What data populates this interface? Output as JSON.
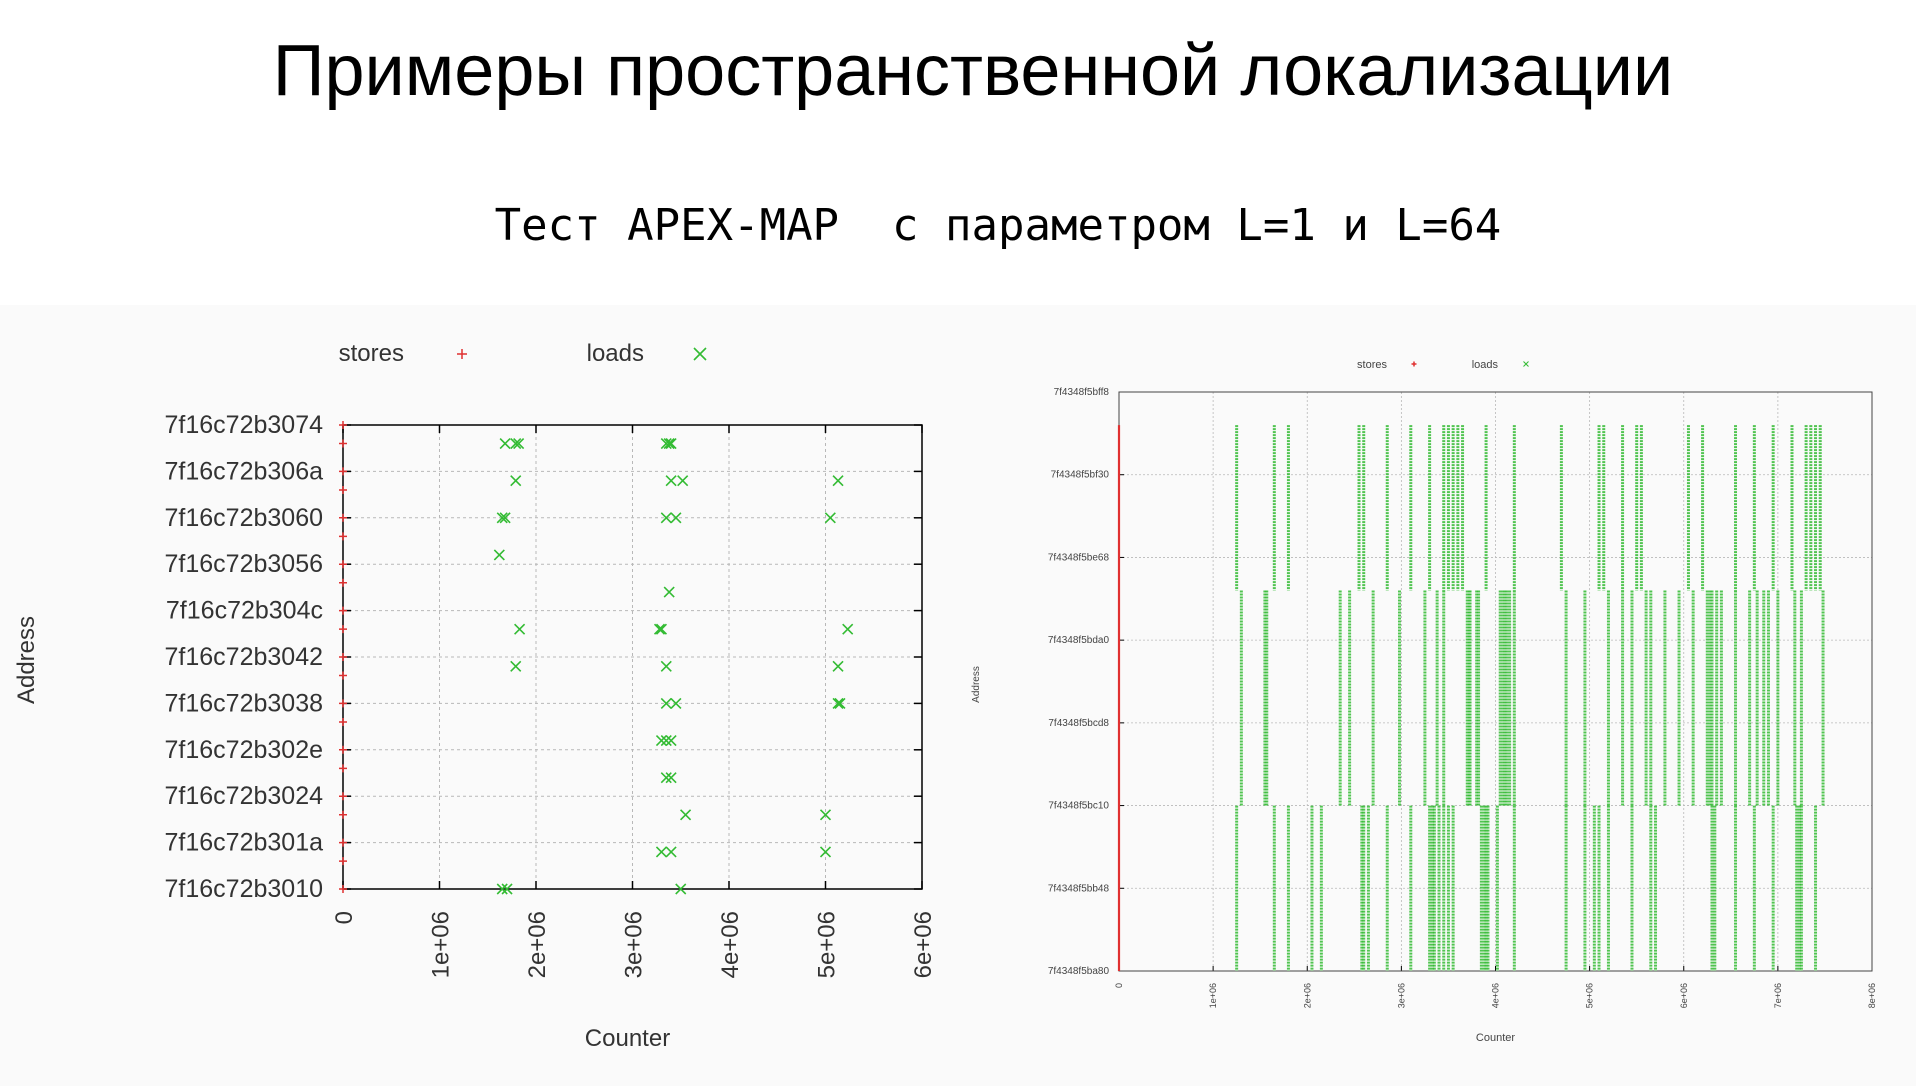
{
  "slide": {
    "title": "Примеры пространственной локализации",
    "subtitle": "Тест APEX-MAP  с параметром L=1 и L=64"
  },
  "colors": {
    "stores": "#e03030",
    "loads": "#33bb33",
    "grid": "#b8b8b8",
    "axis": "#000000"
  },
  "chart_data": [
    {
      "type": "scatter",
      "title": "",
      "xlabel": "Counter",
      "ylabel": "Address",
      "legend": [
        {
          "name": "stores",
          "marker": "+",
          "color": "#e03030"
        },
        {
          "name": "loads",
          "marker": "x",
          "color": "#33bb33"
        }
      ],
      "legend_position": "top",
      "grid": true,
      "xlim": [
        0,
        6000000
      ],
      "x_tick_labels": [
        "0",
        "1e+06",
        "2e+06",
        "3e+06",
        "4e+06",
        "5e+06",
        "6e+06"
      ],
      "y_tick_labels": [
        "7f16c72b3010",
        "7f16c72b301a",
        "7f16c72b3024",
        "7f16c72b302e",
        "7f16c72b3038",
        "7f16c72b3042",
        "7f16c72b304c",
        "7f16c72b3056",
        "7f16c72b3060",
        "7f16c72b306a",
        "7f16c72b3074"
      ],
      "series": [
        {
          "name": "stores",
          "points": [
            [
              0,
              0
            ],
            [
              0,
              1
            ],
            [
              0,
              2
            ],
            [
              0,
              3
            ],
            [
              0,
              4
            ],
            [
              0,
              5
            ],
            [
              0,
              6
            ],
            [
              0,
              7
            ],
            [
              0,
              8
            ],
            [
              0,
              9
            ],
            [
              0,
              10
            ],
            [
              0,
              0.6
            ],
            [
              0,
              1.6
            ],
            [
              0,
              2.6
            ],
            [
              0,
              3.6
            ],
            [
              0,
              4.6
            ],
            [
              0,
              5.6
            ],
            [
              0,
              6.6
            ],
            [
              0,
              7.6
            ],
            [
              0,
              8.6
            ],
            [
              0,
              9.6
            ]
          ]
        },
        {
          "name": "loads",
          "points": [
            [
              1700000,
              0
            ],
            [
              1650000,
              0
            ],
            [
              3500000,
              0
            ],
            [
              3300000,
              0.8
            ],
            [
              3400000,
              0.8
            ],
            [
              5000000,
              0.8
            ],
            [
              3550000,
              1.6
            ],
            [
              5000000,
              1.6
            ],
            [
              3400000,
              2.4
            ],
            [
              3350000,
              2.4
            ],
            [
              3300000,
              3.2
            ],
            [
              3400000,
              3.2
            ],
            [
              3350000,
              3.2
            ],
            [
              3350000,
              4.0
            ],
            [
              3450000,
              4.0
            ],
            [
              5150000,
              4.0
            ],
            [
              5130000,
              4.0
            ],
            [
              1790000,
              4.8
            ],
            [
              3350000,
              4.8
            ],
            [
              5130000,
              4.8
            ],
            [
              1830000,
              5.6
            ],
            [
              3300000,
              5.6
            ],
            [
              3280000,
              5.6
            ],
            [
              5230000,
              5.6
            ],
            [
              3380000,
              6.4
            ],
            [
              1620000,
              7.2
            ],
            [
              1680000,
              8.0
            ],
            [
              1650000,
              8.0
            ],
            [
              3350000,
              8.0
            ],
            [
              3450000,
              8.0
            ],
            [
              5050000,
              8.0
            ],
            [
              1790000,
              8.8
            ],
            [
              3400000,
              8.8
            ],
            [
              3520000,
              8.8
            ],
            [
              5130000,
              8.8
            ],
            [
              1680000,
              9.6
            ],
            [
              1790000,
              9.6
            ],
            [
              1820000,
              9.6
            ],
            [
              3350000,
              9.6
            ],
            [
              3400000,
              9.6
            ],
            [
              3380000,
              9.6
            ]
          ]
        }
      ]
    },
    {
      "type": "scatter",
      "title": "",
      "xlabel": "Counter",
      "ylabel": "Address",
      "legend": [
        {
          "name": "stores",
          "marker": "+",
          "color": "#e03030"
        },
        {
          "name": "loads",
          "marker": "x",
          "color": "#33bb33"
        }
      ],
      "legend_position": "top",
      "grid": true,
      "xlim": [
        0,
        8000000
      ],
      "x_tick_labels": [
        "0",
        "1e+06",
        "2e+06",
        "3e+06",
        "4e+06",
        "5e+06",
        "6e+06",
        "7e+06",
        "8e+06"
      ],
      "y_tick_labels": [
        "7f4348f5ba80",
        "7f4348f5bb48",
        "7f4348f5bc10",
        "7f4348f5bcd8",
        "7f4348f5bda0",
        "7f4348f5be68",
        "7f4348f5bf30",
        "7f4348f5bff8"
      ],
      "stores_x": 0,
      "stores_range": [
        0,
        6.6
      ],
      "loads_top_band": [
        4.6,
        6.6
      ],
      "loads_mid_band": [
        2.0,
        4.6
      ],
      "loads_low_band": [
        0,
        2.0
      ],
      "loads_top_x": [
        1250000,
        1650000,
        1800000,
        2550000,
        2600000,
        2850000,
        3100000,
        3300000,
        3450000,
        3500000,
        3550000,
        3600000,
        3650000,
        3900000,
        4200000,
        4700000,
        5100000,
        5150000,
        5350000,
        5500000,
        5550000,
        6050000,
        6200000,
        6550000,
        6750000,
        6950000,
        7150000,
        7300000,
        7350000,
        7400000,
        7450000
      ],
      "loads_mid_x": [
        1300000,
        1550000,
        1570000,
        2350000,
        2450000,
        2700000,
        2980000,
        3250000,
        3380000,
        3450000,
        3700000,
        3720000,
        3730000,
        3800000,
        3820000,
        4050000,
        4080000,
        4100000,
        4120000,
        4150000,
        4200000,
        4750000,
        4950000,
        5200000,
        5350000,
        5450000,
        5600000,
        5650000,
        5800000,
        5950000,
        6100000,
        6250000,
        6280000,
        6300000,
        6350000,
        6400000,
        6550000,
        6700000,
        6780000,
        6850000,
        6900000,
        7000000,
        7180000,
        7250000,
        7480000
      ],
      "loads_low_x": [
        1250000,
        1650000,
        1800000,
        2050000,
        2150000,
        2580000,
        2600000,
        2650000,
        2850000,
        3100000,
        3300000,
        3330000,
        3350000,
        3400000,
        3450000,
        3500000,
        3550000,
        3850000,
        3880000,
        3900000,
        3920000,
        4020000,
        4200000,
        4750000,
        4950000,
        5050000,
        5100000,
        5200000,
        5450000,
        5650000,
        5700000,
        6300000,
        6330000,
        6550000,
        6750000,
        6950000,
        7200000,
        7230000,
        7250000,
        7400000
      ]
    }
  ]
}
